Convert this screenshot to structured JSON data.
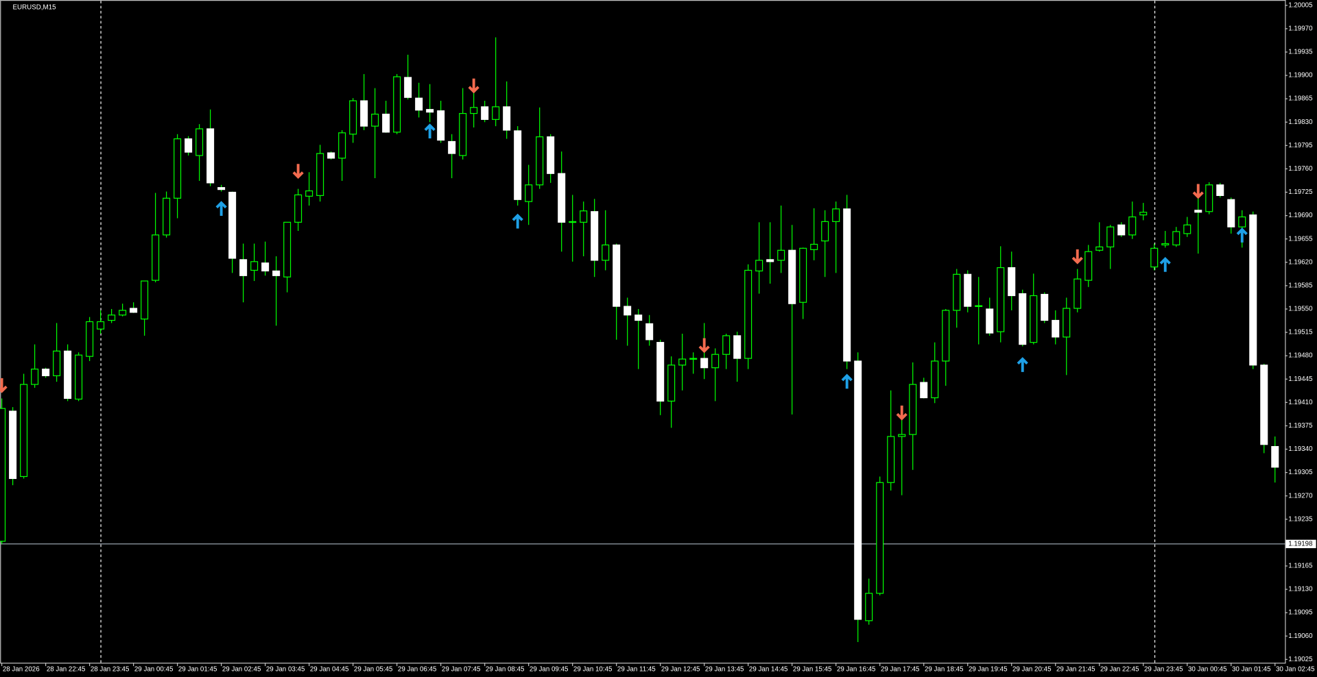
{
  "chart_data": {
    "type": "candlestick",
    "title": "EURUSD,M15",
    "categories": [
      "28 Jan 2026",
      null,
      null,
      null,
      "28 Jan 22:45",
      null,
      null,
      null,
      "28 Jan 23:45",
      null,
      null,
      null,
      "29 Jan 00:45",
      null,
      null,
      null,
      "29 Jan 01:45",
      null,
      null,
      null,
      "29 Jan 02:45",
      null,
      null,
      null,
      "29 Jan 03:45",
      null,
      null,
      null,
      "29 Jan 04:45",
      null,
      null,
      null,
      "29 Jan 05:45",
      null,
      null,
      null,
      "29 Jan 06:45",
      null,
      null,
      null,
      "29 Jan 07:45",
      null,
      null,
      null,
      "29 Jan 08:45",
      null,
      null,
      null,
      "29 Jan 09:45",
      null,
      null,
      null,
      "29 Jan 10:45",
      null,
      null,
      null,
      "29 Jan 11:45",
      null,
      null,
      null,
      "29 Jan 12:45",
      null,
      null,
      null,
      "29 Jan 13:45",
      null,
      null,
      null,
      "29 Jan 14:45",
      null,
      null,
      null,
      "29 Jan 15:45",
      null,
      null,
      null,
      "29 Jan 16:45",
      null,
      null,
      null,
      "29 Jan 17:45",
      null,
      null,
      null,
      "29 Jan 18:45",
      null,
      null,
      null,
      "29 Jan 19:45",
      null,
      null,
      null,
      "29 Jan 20:45",
      null,
      null,
      null,
      "29 Jan 21:45",
      null,
      null,
      null,
      "29 Jan 22:45",
      null,
      null,
      null,
      "29 Jan 23:45",
      null,
      null,
      null,
      "30 Jan 00:45",
      null,
      null,
      null,
      "30 Jan 01:45",
      null,
      null,
      null,
      "30 Jan 02:45"
    ],
    "open": [
      1.19202,
      1.19397,
      1.19299,
      1.19437,
      1.1946,
      1.1945,
      1.19487,
      1.19415,
      1.19479,
      1.1952,
      1.19533,
      1.19541,
      1.19551,
      1.19535,
      1.19593,
      1.19661,
      1.19716,
      1.19805,
      1.1978,
      1.1982,
      1.19732,
      1.19725,
      1.19624,
      1.19608,
      1.19619,
      1.19607,
      1.19598,
      1.1968,
      1.19719,
      1.1972,
      1.19784,
      1.19776,
      1.19812,
      1.19862,
      1.19824,
      1.19842,
      1.19815,
      1.19897,
      1.19866,
      1.19849,
      1.19847,
      1.19801,
      1.1978,
      1.19843,
      1.19853,
      1.19834,
      1.19853,
      1.19817,
      1.19711,
      1.19736,
      1.19808,
      1.19753,
      1.1968,
      1.1968,
      1.19696,
      1.19623,
      1.19646,
      1.19554,
      1.19541,
      1.19528,
      1.195,
      1.19412,
      1.19466,
      1.19475,
      1.19476,
      1.19462,
      1.19482,
      1.1951,
      1.19476,
      1.19607,
      1.19624,
      1.19623,
      1.19638,
      1.1956,
      1.19639,
      1.19652,
      1.19681,
      1.197,
      1.19472,
      1.19083,
      1.19124,
      1.1929,
      1.19359,
      1.19362,
      1.1944,
      1.19417,
      1.19472,
      1.19548,
      1.19602,
      1.19554,
      1.1955,
      1.19516,
      1.19612,
      1.19573,
      1.195,
      1.19572,
      1.19533,
      1.19508,
      1.19551,
      1.19593,
      1.19638,
      1.19643,
      1.19676,
      1.19661,
      1.19691,
      1.19613,
      1.19646,
      1.19646,
      1.19663,
      1.19698,
      1.19696,
      1.19736,
      1.19714,
      1.19673,
      1.19691,
      1.19466,
      1.19344
    ],
    "high": [
      1.19416,
      1.19403,
      1.19453,
      1.19497,
      1.19462,
      1.19529,
      1.19497,
      1.19485,
      1.19538,
      1.19548,
      1.1955,
      1.19558,
      1.1956,
      1.19592,
      1.19724,
      1.19726,
      1.19812,
      1.19809,
      1.19827,
      1.19849,
      1.19736,
      1.19726,
      1.19648,
      1.19648,
      1.19651,
      1.19629,
      1.1968,
      1.1973,
      1.19755,
      1.19796,
      1.19786,
      1.19818,
      1.19866,
      1.19902,
      1.19881,
      1.19862,
      1.19902,
      1.19931,
      1.19889,
      1.19887,
      1.19862,
      1.19812,
      1.19881,
      1.19874,
      1.19862,
      1.19957,
      1.19891,
      1.19824,
      1.19766,
      1.19852,
      1.19812,
      1.19786,
      1.19721,
      1.19711,
      1.19715,
      1.19698,
      1.19648,
      1.19567,
      1.1955,
      1.19541,
      1.19504,
      1.19479,
      1.19513,
      1.19485,
      1.19529,
      1.19491,
      1.19513,
      1.19516,
      1.19617,
      1.1968,
      1.1968,
      1.19705,
      1.19676,
      1.19642,
      1.19701,
      1.19698,
      1.19711,
      1.19721,
      1.19485,
      1.19146,
      1.19299,
      1.19428,
      1.19384,
      1.1947,
      1.19447,
      1.195,
      1.1955,
      1.1961,
      1.19608,
      1.19598,
      1.19567,
      1.19644,
      1.19636,
      1.19579,
      1.19603,
      1.19575,
      1.19548,
      1.19567,
      1.1961,
      1.19646,
      1.1968,
      1.19676,
      1.1968,
      1.19711,
      1.19709,
      1.19648,
      1.19667,
      1.19673,
      1.19688,
      1.19717,
      1.1974,
      1.19739,
      1.19717,
      1.19698,
      1.19696,
      1.19468,
      1.19359
    ],
    "low": [
      1.19198,
      1.19286,
      1.19296,
      1.19432,
      1.19447,
      1.19441,
      1.19412,
      1.19412,
      1.19472,
      1.19513,
      1.19529,
      1.19539,
      1.19544,
      1.1951,
      1.1959,
      1.19657,
      1.19686,
      1.1978,
      1.19742,
      1.19734,
      1.19726,
      1.19604,
      1.1956,
      1.19592,
      1.196,
      1.19525,
      1.19575,
      1.19667,
      1.19705,
      1.19711,
      1.19774,
      1.19742,
      1.19799,
      1.19818,
      1.19746,
      1.19814,
      1.19812,
      1.19864,
      1.19837,
      1.1983,
      1.19799,
      1.19746,
      1.19774,
      1.19822,
      1.1983,
      1.19824,
      1.19805,
      1.19705,
      1.19676,
      1.1973,
      1.19739,
      1.19636,
      1.19621,
      1.19629,
      1.19598,
      1.19608,
      1.19504,
      1.19495,
      1.1946,
      1.19495,
      1.19391,
      1.19372,
      1.19428,
      1.19453,
      1.19445,
      1.19412,
      1.1946,
      1.19441,
      1.1946,
      1.19573,
      1.19588,
      1.19604,
      1.19392,
      1.19535,
      1.19623,
      1.19598,
      1.19604,
      1.1946,
      1.19051,
      1.19077,
      1.19121,
      1.19278,
      1.19271,
      1.19309,
      1.19416,
      1.19409,
      1.19435,
      1.19522,
      1.19545,
      1.19497,
      1.1951,
      1.195,
      1.19548,
      1.19494,
      1.19497,
      1.19529,
      1.19497,
      1.19451,
      1.19545,
      1.19583,
      1.19636,
      1.1961,
      1.19658,
      1.19655,
      1.19683,
      1.19608,
      1.19642,
      1.19643,
      1.19658,
      1.19633,
      1.19692,
      1.19717,
      1.19663,
      1.19642,
      1.1946,
      1.19334,
      1.1929
    ],
    "close": [
      1.19401,
      1.19296,
      1.19437,
      1.1946,
      1.1945,
      1.19487,
      1.19416,
      1.19481,
      1.19531,
      1.19531,
      1.19541,
      1.19548,
      1.19545,
      1.19592,
      1.19661,
      1.19716,
      1.19805,
      1.19785,
      1.1982,
      1.19739,
      1.19729,
      1.19626,
      1.196,
      1.19621,
      1.19607,
      1.196,
      1.1968,
      1.19721,
      1.19727,
      1.19783,
      1.19776,
      1.19814,
      1.19862,
      1.19824,
      1.19842,
      1.19815,
      1.19898,
      1.19867,
      1.19848,
      1.19845,
      1.19803,
      1.19783,
      1.19843,
      1.19852,
      1.19834,
      1.19853,
      1.19818,
      1.19714,
      1.19736,
      1.19808,
      1.19753,
      1.1968,
      1.19681,
      1.19697,
      1.19623,
      1.19646,
      1.19554,
      1.19541,
      1.19533,
      1.19504,
      1.19412,
      1.19466,
      1.19475,
      1.19476,
      1.19462,
      1.19482,
      1.1951,
      1.19476,
      1.19608,
      1.19623,
      1.19621,
      1.19638,
      1.19558,
      1.19641,
      1.19647,
      1.19681,
      1.197,
      1.19472,
      1.19085,
      1.19124,
      1.1929,
      1.19359,
      1.19362,
      1.19437,
      1.19417,
      1.19472,
      1.19548,
      1.19602,
      1.19554,
      1.19555,
      1.19514,
      1.19612,
      1.1957,
      1.19497,
      1.1957,
      1.19533,
      1.19508,
      1.19551,
      1.19595,
      1.19636,
      1.19643,
      1.19673,
      1.19661,
      1.19688,
      1.19695,
      1.19641,
      1.19648,
      1.19666,
      1.19676,
      1.19695,
      1.19736,
      1.1972,
      1.19673,
      1.19688,
      1.19466,
      1.19347,
      1.19313
    ],
    "down_arrows": [
      {
        "bar": 0,
        "price": 1.19425
      },
      {
        "bar": 27,
        "price": 1.19746
      },
      {
        "bar": 43,
        "price": 1.19874
      },
      {
        "bar": 64,
        "price": 1.19485
      },
      {
        "bar": 82,
        "price": 1.19384
      },
      {
        "bar": 98,
        "price": 1.19618
      },
      {
        "bar": 109,
        "price": 1.19716
      }
    ],
    "up_arrows": [
      {
        "bar": 20,
        "price": 1.19711
      },
      {
        "bar": 39,
        "price": 1.19827
      },
      {
        "bar": 47,
        "price": 1.19692
      },
      {
        "bar": 77,
        "price": 1.19452
      },
      {
        "bar": 93,
        "price": 1.19477
      },
      {
        "bar": 106,
        "price": 1.19627
      },
      {
        "bar": 113,
        "price": 1.19671
      }
    ],
    "down_arrow_color": "#f26b4f",
    "up_arrow_color": "#1ea0e6",
    "price_line": 1.19198,
    "ylim": [
      1.1902,
      1.20013
    ],
    "yticks": [
      1.20005,
      {
        "value": 1.1997,
        "label": "1.19970"
      },
      1.19935,
      {
        "value": 1.199,
        "label": "1.19900"
      },
      1.19865,
      {
        "value": 1.1983,
        "label": "1.19830"
      },
      1.19795,
      {
        "value": 1.1976,
        "label": "1.19760"
      },
      1.19725,
      {
        "value": 1.1969,
        "label": "1.19690"
      },
      1.19655,
      {
        "value": 1.1962,
        "label": "1.19620"
      },
      1.19585,
      {
        "value": 1.1955,
        "label": "1.19550"
      },
      1.19515,
      {
        "value": 1.1948,
        "label": "1.19480"
      },
      1.19445,
      {
        "value": 1.1941,
        "label": "1.19410"
      },
      1.19375,
      {
        "value": 1.1934,
        "label": "1.19340"
      },
      1.19305,
      {
        "value": 1.1927,
        "label": "1.19270"
      },
      1.19235,
      1.19165,
      {
        "value": 1.1913,
        "label": "1.19130"
      },
      1.19095,
      {
        "value": 1.1906,
        "label": "1.19060"
      },
      1.19025
    ],
    "grid": false,
    "line_color": "#00ff00",
    "bull_fill": "#000000",
    "bear_fill": "#ffffff",
    "background": "#000000"
  }
}
